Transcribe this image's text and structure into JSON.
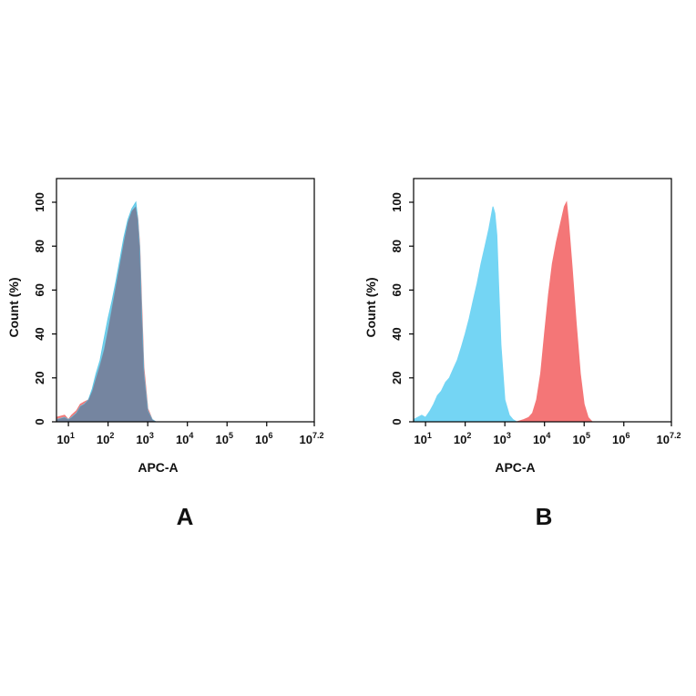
{
  "chart_data": [
    {
      "type": "area",
      "panel_label": "A",
      "xlabel": "APC-A",
      "ylabel": "Count  (%)",
      "x_scale": "log",
      "xlim": [
        5,
        15848932
      ],
      "ylim": [
        0,
        100
      ],
      "x_ticks": [
        {
          "value": 10,
          "base": "10",
          "exp": "1"
        },
        {
          "value": 100,
          "base": "10",
          "exp": "2"
        },
        {
          "value": 1000,
          "base": "10",
          "exp": "3"
        },
        {
          "value": 10000,
          "base": "10",
          "exp": "4"
        },
        {
          "value": 100000,
          "base": "10",
          "exp": "5"
        },
        {
          "value": 1000000,
          "base": "10",
          "exp": "6"
        },
        {
          "value": 15848932,
          "base": "10",
          "exp": "7.2"
        }
      ],
      "y_ticks": [
        "0",
        "20",
        "40",
        "60",
        "80",
        "100"
      ],
      "series": [
        {
          "color": "#f07070",
          "x": [
            5,
            8,
            10,
            12,
            16,
            20,
            25,
            32,
            40,
            50,
            63,
            80,
            100,
            126,
            158,
            200,
            251,
            316,
            398,
            500,
            560,
            630,
            700,
            800,
            1000,
            1300,
            1600,
            2000
          ],
          "y": [
            2,
            3,
            1,
            3,
            5,
            8,
            9,
            10,
            14,
            20,
            26,
            33,
            42,
            52,
            62,
            72,
            82,
            91,
            96,
            98,
            93,
            80,
            55,
            25,
            6,
            1,
            0,
            0
          ]
        },
        {
          "color": "#5ec8e8",
          "x": [
            5,
            8,
            10,
            12,
            16,
            20,
            25,
            32,
            40,
            50,
            63,
            80,
            100,
            126,
            158,
            200,
            251,
            316,
            398,
            500,
            560,
            630,
            700,
            800,
            1000,
            1300,
            1600,
            2000
          ],
          "y": [
            1,
            2,
            1,
            2,
            4,
            7,
            8,
            10,
            15,
            22,
            28,
            38,
            47,
            55,
            64,
            74,
            84,
            92,
            97,
            100,
            92,
            78,
            50,
            22,
            5,
            1,
            0,
            0
          ]
        }
      ],
      "overlap_color": "#7585a0"
    },
    {
      "type": "area",
      "panel_label": "B",
      "xlabel": "APC-A",
      "ylabel": "Count  (%)",
      "x_scale": "log",
      "xlim": [
        5,
        15848932
      ],
      "ylim": [
        0,
        100
      ],
      "x_ticks": [
        {
          "value": 10,
          "base": "10",
          "exp": "1"
        },
        {
          "value": 100,
          "base": "10",
          "exp": "2"
        },
        {
          "value": 1000,
          "base": "10",
          "exp": "3"
        },
        {
          "value": 10000,
          "base": "10",
          "exp": "4"
        },
        {
          "value": 100000,
          "base": "10",
          "exp": "5"
        },
        {
          "value": 1000000,
          "base": "10",
          "exp": "6"
        },
        {
          "value": 15848932,
          "base": "10",
          "exp": "7.2"
        }
      ],
      "y_ticks": [
        "0",
        "20",
        "40",
        "60",
        "80",
        "100"
      ],
      "series": [
        {
          "color": "#74d5f4",
          "x": [
            5,
            8,
            10,
            13,
            16,
            20,
            25,
            32,
            40,
            50,
            63,
            80,
            100,
            126,
            158,
            200,
            251,
            316,
            398,
            500,
            560,
            630,
            700,
            800,
            1000,
            1300,
            1600,
            2000,
            2500
          ],
          "y": [
            1,
            3,
            2,
            5,
            8,
            12,
            14,
            18,
            20,
            24,
            28,
            34,
            40,
            47,
            55,
            63,
            72,
            80,
            88,
            98,
            95,
            85,
            62,
            35,
            10,
            3,
            1,
            0,
            0
          ]
        },
        {
          "color": "#f47677",
          "x": [
            2000,
            3000,
            4000,
            5000,
            6300,
            8000,
            10000,
            12600,
            15800,
            20000,
            25100,
            31600,
            36000,
            40000,
            50000,
            63000,
            80000,
            100000,
            126000,
            160000
          ],
          "y": [
            0,
            1,
            2,
            4,
            10,
            22,
            40,
            58,
            72,
            82,
            90,
            98,
            100,
            92,
            70,
            45,
            22,
            8,
            2,
            0
          ]
        }
      ]
    }
  ]
}
